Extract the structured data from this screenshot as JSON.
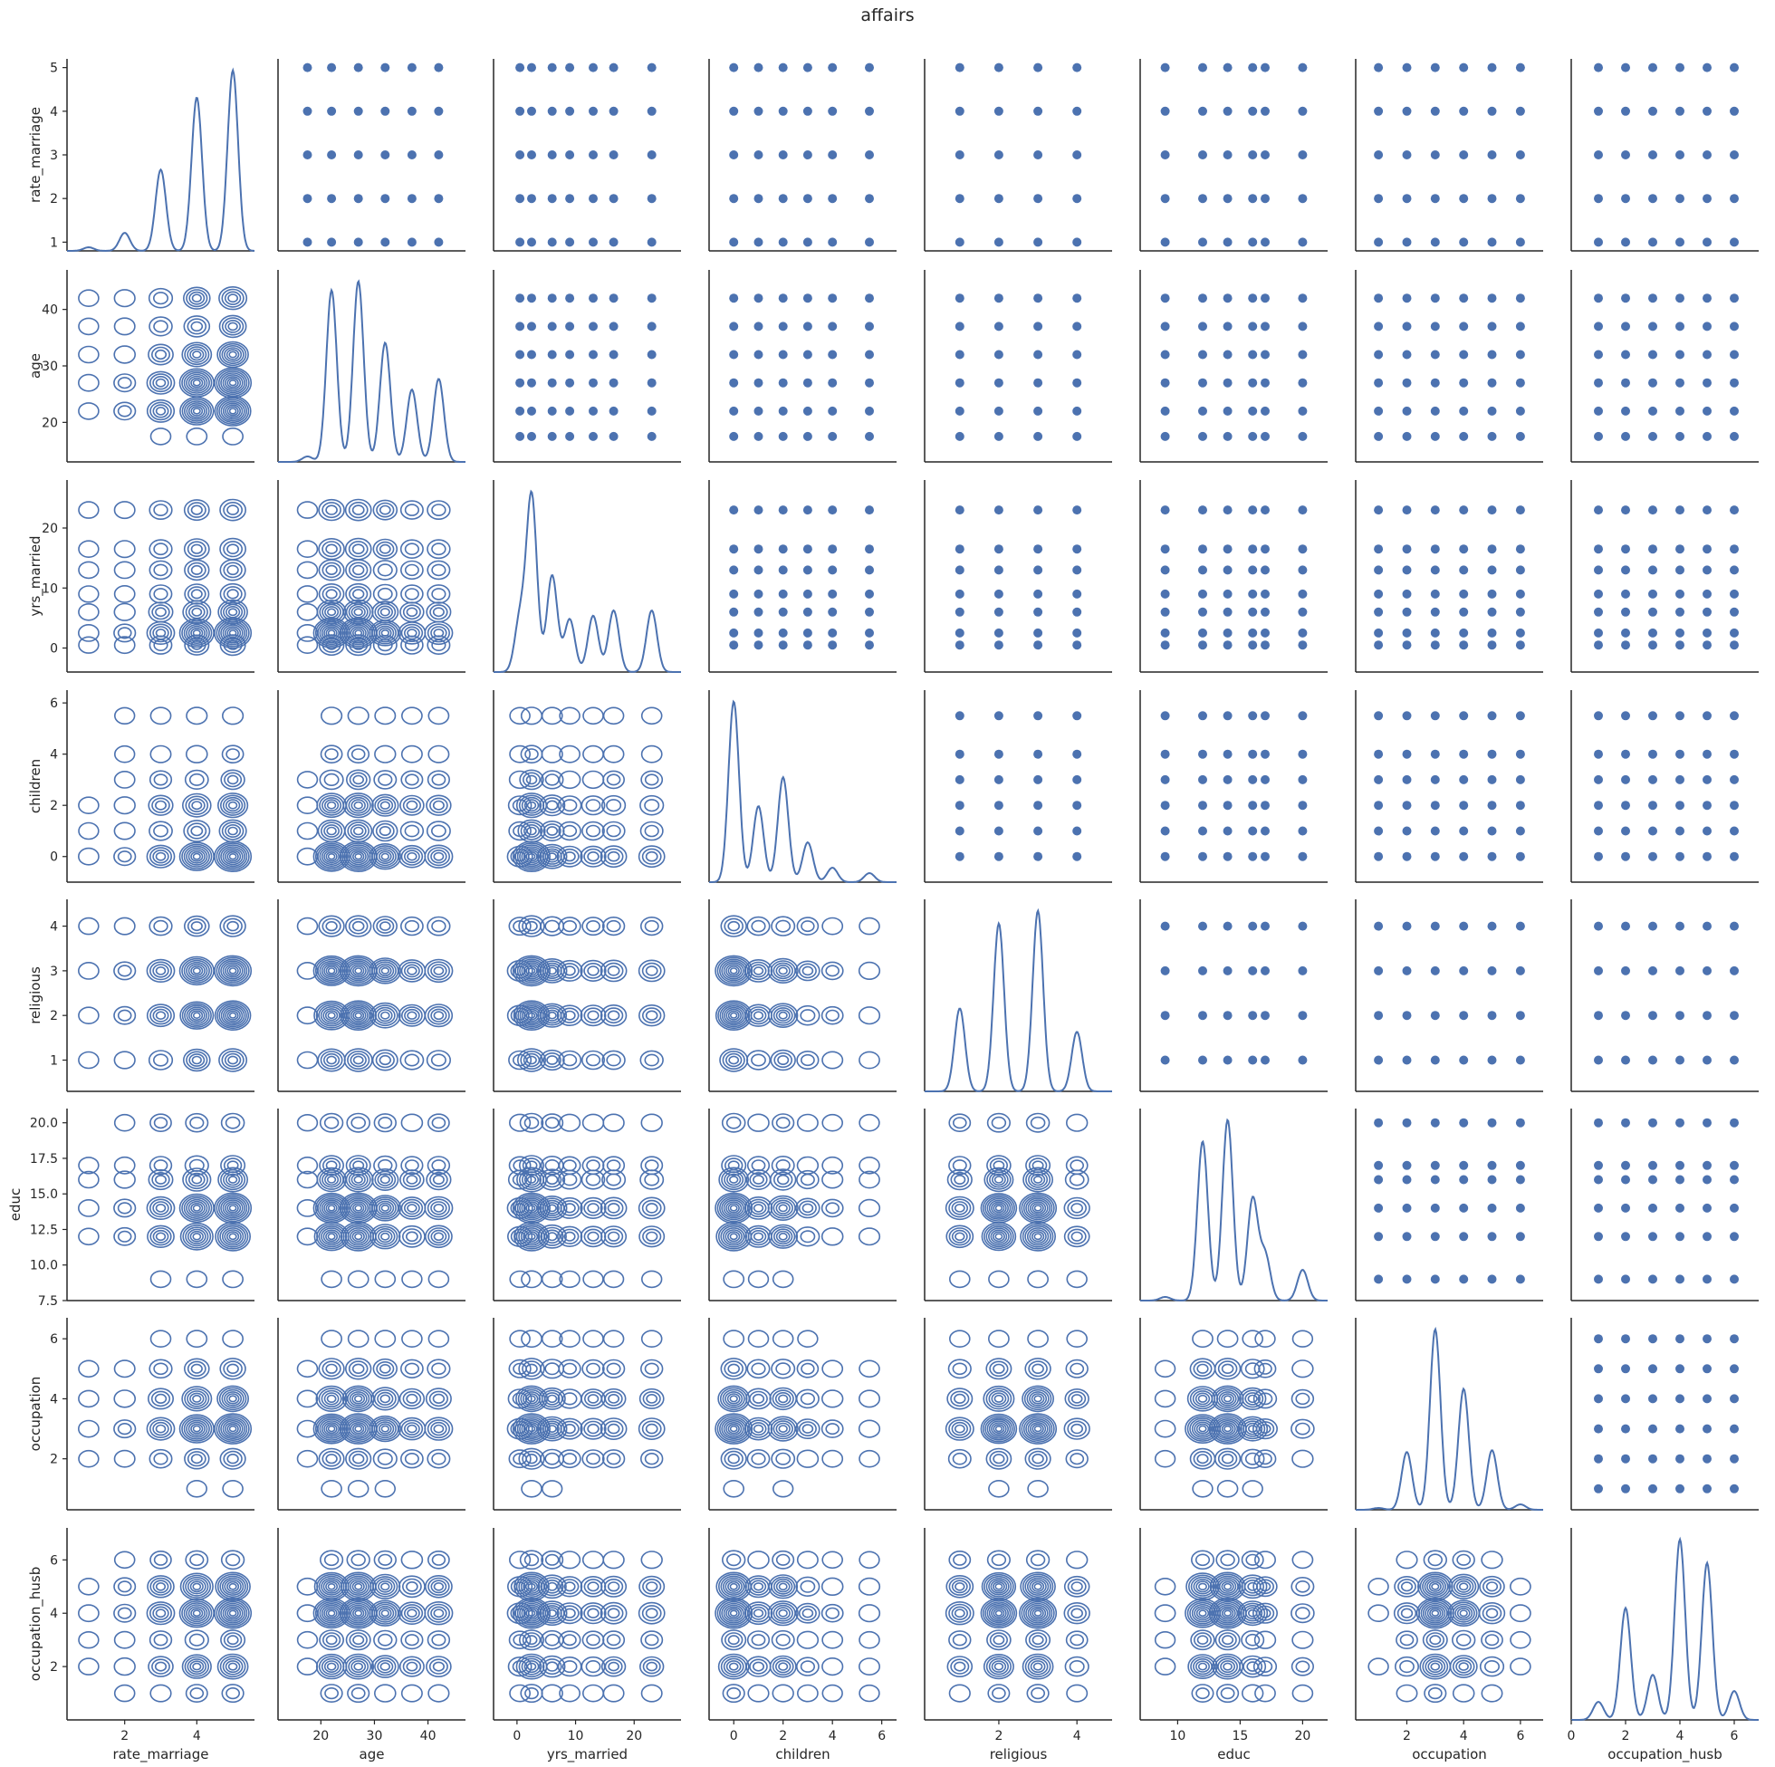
{
  "chart_data": {
    "type": "pairplot",
    "title": "affairs",
    "upper": "scatter",
    "diag": "kde",
    "lower": "kde-contour",
    "color": "#4c72b0",
    "variables": [
      {
        "name": "rate_marriage",
        "ticks": [
          2,
          4
        ],
        "tick_labels": [
          "2",
          "4"
        ],
        "range": [
          0.4,
          5.6
        ],
        "y_ticks": [
          1,
          2,
          3,
          4,
          5
        ],
        "y_tick_labels": [
          "1",
          "2",
          "3",
          "4",
          "5"
        ],
        "y_range": [
          0.8,
          5.2
        ],
        "values": [
          1,
          2,
          3,
          4,
          5
        ],
        "density": [
          0.02,
          0.1,
          0.45,
          0.85,
          1.0
        ]
      },
      {
        "name": "age",
        "ticks": [
          20,
          30,
          40
        ],
        "tick_labels": [
          "20",
          "30",
          "40"
        ],
        "range": [
          12,
          47
        ],
        "y_ticks": [
          20,
          30,
          40
        ],
        "y_tick_labels": [
          "20",
          "30",
          "40"
        ],
        "y_range": [
          13,
          47
        ],
        "values": [
          17.5,
          22,
          27,
          32,
          37,
          42
        ],
        "density": [
          0.03,
          0.95,
          1.0,
          0.66,
          0.4,
          0.46
        ]
      },
      {
        "name": "yrs_married",
        "ticks": [
          0,
          10,
          20
        ],
        "tick_labels": [
          "0",
          "10",
          "20"
        ],
        "range": [
          -4,
          28
        ],
        "y_ticks": [
          0,
          10,
          20
        ],
        "y_tick_labels": [
          "0",
          "10",
          "20"
        ],
        "y_range": [
          -4,
          28
        ],
        "values": [
          0.5,
          2.5,
          6,
          9,
          13,
          16.5,
          23
        ],
        "density": [
          0.3,
          1.0,
          0.55,
          0.3,
          0.32,
          0.35,
          0.35
        ]
      },
      {
        "name": "children",
        "ticks": [
          0,
          2,
          4,
          6
        ],
        "tick_labels": [
          "0",
          "2",
          "4",
          "6"
        ],
        "range": [
          -1,
          6.6
        ],
        "y_ticks": [
          0,
          2,
          4,
          6
        ],
        "y_tick_labels": [
          "0",
          "2",
          "4",
          "6"
        ],
        "y_range": [
          -1,
          6.5
        ],
        "values": [
          0,
          1,
          2,
          3,
          4,
          5.5
        ],
        "density": [
          1.0,
          0.42,
          0.58,
          0.22,
          0.08,
          0.05
        ]
      },
      {
        "name": "religious",
        "ticks": [
          2,
          4
        ],
        "tick_labels": [
          "2",
          "4"
        ],
        "range": [
          0.1,
          4.9
        ],
        "y_ticks": [
          1,
          2,
          3,
          4
        ],
        "y_tick_labels": [
          "1",
          "2",
          "3",
          "4"
        ],
        "y_range": [
          0.3,
          4.6
        ],
        "values": [
          1,
          2,
          3,
          4
        ],
        "density": [
          0.46,
          0.93,
          1.0,
          0.33
        ]
      },
      {
        "name": "educ",
        "ticks": [
          10,
          15,
          20
        ],
        "tick_labels": [
          "10",
          "15",
          "20"
        ],
        "range": [
          7,
          22
        ],
        "y_ticks": [
          7.5,
          10.0,
          12.5,
          15.0,
          17.5,
          20.0
        ],
        "y_tick_labels": [
          "7.5",
          "10.0",
          "12.5",
          "15.0",
          "17.5",
          "20.0"
        ],
        "y_range": [
          7.5,
          21
        ],
        "values": [
          9,
          12,
          14,
          16,
          17,
          20
        ],
        "density": [
          0.02,
          0.88,
          1.0,
          0.56,
          0.25,
          0.17
        ]
      },
      {
        "name": "occupation",
        "ticks": [
          2,
          4,
          6
        ],
        "tick_labels": [
          "2",
          "4",
          "6"
        ],
        "range": [
          0.2,
          6.8
        ],
        "y_ticks": [
          2,
          4,
          6
        ],
        "y_tick_labels": [
          "2",
          "4",
          "6"
        ],
        "y_range": [
          0.3,
          6.7
        ],
        "values": [
          1,
          2,
          3,
          4,
          5,
          6
        ],
        "density": [
          0.01,
          0.32,
          1.0,
          0.67,
          0.33,
          0.03
        ]
      },
      {
        "name": "occupation_husb",
        "ticks": [
          0,
          2,
          4,
          6
        ],
        "tick_labels": [
          "0",
          "2",
          "4",
          "6"
        ],
        "range": [
          0,
          6.9
        ],
        "y_ticks": [
          2,
          4,
          6
        ],
        "y_tick_labels": [
          "2",
          "4",
          "6"
        ],
        "y_range": [
          0,
          7.2
        ],
        "values": [
          1,
          2,
          3,
          4,
          5,
          6
        ],
        "density": [
          0.1,
          0.62,
          0.25,
          1.0,
          0.87,
          0.16
        ]
      }
    ]
  }
}
